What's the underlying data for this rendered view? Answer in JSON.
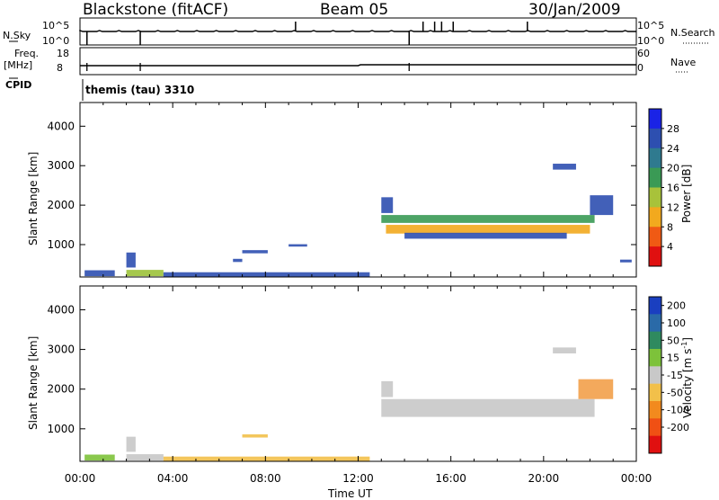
{
  "header": {
    "station": "Blackstone (fitACF)",
    "beam": "Beam 05",
    "date": "30/Jan/2009"
  },
  "top_panels": {
    "nsky_label": "N.Sky",
    "nsky_ticks": [
      "10^5",
      "10^0"
    ],
    "nsearch_label": "N.Search",
    "nsearch_ticks": [
      "10^5",
      "10^0"
    ],
    "freq_label": "Freq.",
    "freq_unit": "[MHz]",
    "freq_ticks": [
      "18",
      "8"
    ],
    "nave_label": "Nave",
    "nave_ticks": [
      "60",
      "0"
    ],
    "cpid_label": "CPID",
    "cpid_value": "themis (tau) 3310"
  },
  "chart_data": [
    {
      "type": "heatmap",
      "name": "power-panel",
      "ylabel": "Slant Range [km]",
      "xlabel": "",
      "yticks": [
        "1000",
        "2000",
        "3000",
        "4000"
      ],
      "ylim": [
        180,
        4600
      ],
      "xlim": [
        0,
        24
      ],
      "colorbar": {
        "label": "Power [dB]",
        "ticks": [
          "4",
          "8",
          "12",
          "16",
          "20",
          "24",
          "28"
        ],
        "colors": [
          "#1a23e6",
          "#2d4fb0",
          "#2f7a8f",
          "#3a9a55",
          "#a8c23a",
          "#f2a91e",
          "#f05a14",
          "#e01010"
        ]
      },
      "regions": [
        {
          "t0": 0.2,
          "t1": 1.5,
          "r0": 200,
          "r1": 350,
          "fill": "#2d4fb0"
        },
        {
          "t0": 2.0,
          "t1": 2.4,
          "r0": 420,
          "r1": 800,
          "fill": "#2d4fb0"
        },
        {
          "t0": 2.0,
          "t1": 3.6,
          "r0": 200,
          "r1": 360,
          "fill": "#9cc23a"
        },
        {
          "t0": 3.6,
          "t1": 12.5,
          "r0": 180,
          "r1": 300,
          "fill": "#2d4fb0"
        },
        {
          "t0": 7.0,
          "t1": 8.1,
          "r0": 780,
          "r1": 860,
          "fill": "#2d4fb0"
        },
        {
          "t0": 6.6,
          "t1": 7.0,
          "r0": 560,
          "r1": 640,
          "fill": "#2d4fb0"
        },
        {
          "t0": 9.0,
          "t1": 9.8,
          "r0": 950,
          "r1": 1010,
          "fill": "#2d4fb0"
        },
        {
          "t0": 13.0,
          "t1": 22.2,
          "r0": 1550,
          "r1": 1750,
          "fill": "#3a9a55"
        },
        {
          "t0": 13.2,
          "t1": 22.0,
          "r0": 1280,
          "r1": 1500,
          "fill": "#f2a91e"
        },
        {
          "t0": 14.0,
          "t1": 21.0,
          "r0": 1150,
          "r1": 1300,
          "fill": "#2d4fb0"
        },
        {
          "t0": 22.0,
          "t1": 23.0,
          "r0": 1750,
          "r1": 2250,
          "fill": "#2d4fb0"
        },
        {
          "t0": 13.0,
          "t1": 13.5,
          "r0": 1800,
          "r1": 2200,
          "fill": "#2d4fb0"
        },
        {
          "t0": 20.4,
          "t1": 21.4,
          "r0": 2900,
          "r1": 3050,
          "fill": "#2d4fb0"
        },
        {
          "t0": 23.3,
          "t1": 23.8,
          "r0": 550,
          "r1": 620,
          "fill": "#2d4fb0"
        }
      ]
    },
    {
      "type": "heatmap",
      "name": "velocity-panel",
      "ylabel": "Slant Range [km]",
      "xlabel": "Time UT",
      "yticks": [
        "1000",
        "2000",
        "3000",
        "4000"
      ],
      "ylim": [
        180,
        4600
      ],
      "xlim": [
        0,
        24
      ],
      "colorbar": {
        "label": "Velocity [m s",
        "label_sup": "-1",
        "label_end": "]",
        "ticks": [
          "200",
          "100",
          "50",
          "15",
          "-15",
          "-50",
          "-100",
          "-200"
        ],
        "colors": [
          "#1a3fc0",
          "#2a6aa8",
          "#2f8a5f",
          "#7dc23a",
          "#c8c8c8",
          "#f2c04a",
          "#f28a1e",
          "#f05014",
          "#e01010"
        ]
      },
      "regions": [
        {
          "t0": 0.2,
          "t1": 1.5,
          "r0": 200,
          "r1": 350,
          "fill": "#7dc23a"
        },
        {
          "t0": 2.0,
          "t1": 2.4,
          "r0": 420,
          "r1": 800,
          "fill": "#c8c8c8"
        },
        {
          "t0": 2.0,
          "t1": 3.6,
          "r0": 200,
          "r1": 360,
          "fill": "#c8c8c8"
        },
        {
          "t0": 3.6,
          "t1": 12.5,
          "r0": 180,
          "r1": 300,
          "fill": "#f2c04a"
        },
        {
          "t0": 7.0,
          "t1": 8.1,
          "r0": 780,
          "r1": 860,
          "fill": "#f2c04a"
        },
        {
          "t0": 13.0,
          "t1": 22.2,
          "r0": 1300,
          "r1": 1750,
          "fill": "#c8c8c8"
        },
        {
          "t0": 21.5,
          "t1": 23.0,
          "r0": 1750,
          "r1": 2250,
          "fill": "#f2a04a"
        },
        {
          "t0": 13.0,
          "t1": 13.5,
          "r0": 1800,
          "r1": 2200,
          "fill": "#c8c8c8"
        },
        {
          "t0": 20.4,
          "t1": 21.4,
          "r0": 2900,
          "r1": 3050,
          "fill": "#c8c8c8"
        }
      ]
    }
  ],
  "x_ticks": [
    "00:00",
    "04:00",
    "08:00",
    "12:00",
    "16:00",
    "20:00",
    "00:00"
  ],
  "x_axis_label": "Time UT"
}
